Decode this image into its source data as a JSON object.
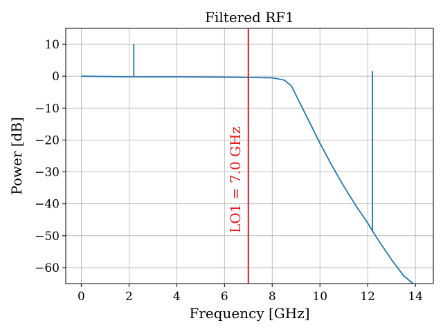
{
  "chart_data": {
    "type": "line",
    "title": "Filtered RF1",
    "xlabel": "Frequency [GHz]",
    "ylabel": "Power [dB]",
    "xlim": [
      -0.65,
      14.75
    ],
    "ylim": [
      -65,
      15
    ],
    "xticks": [
      0,
      2,
      4,
      6,
      8,
      10,
      12,
      14
    ],
    "xtick_labels": [
      "0",
      "2",
      "4",
      "6",
      "8",
      "10",
      "12",
      "14"
    ],
    "yticks": [
      10,
      0,
      -10,
      -20,
      -30,
      -40,
      -50,
      -60
    ],
    "ytick_labels": [
      "10",
      "0",
      "−10",
      "−20",
      "−30",
      "−40",
      "−50",
      "−60"
    ],
    "grid": true,
    "series": [
      {
        "color": "#1f77b4",
        "x": [
          0,
          1,
          2,
          2.2,
          2.2,
          2.2,
          2.2,
          4,
          6,
          7,
          8,
          8.5,
          8.8,
          9,
          9.5,
          10,
          10.5,
          11,
          11.5,
          12,
          12.2,
          12.2,
          12.2,
          12.2,
          12.5,
          13,
          13.5,
          13.9
        ],
        "y": [
          0,
          -0.1,
          -0.2,
          -0.2,
          10,
          10,
          -0.2,
          -0.2,
          -0.3,
          -0.4,
          -0.5,
          -1.2,
          -3,
          -6,
          -13.5,
          -21,
          -28,
          -34.5,
          -40.5,
          -46,
          -48.5,
          1.5,
          1.5,
          -48.5,
          -52,
          -57.5,
          -62.5,
          -65
        ]
      }
    ],
    "vline": {
      "x": 7.0,
      "color": "#e41a1c",
      "label": "LO1 = 7.0 GHz",
      "label_color": "#e41a1c"
    }
  }
}
